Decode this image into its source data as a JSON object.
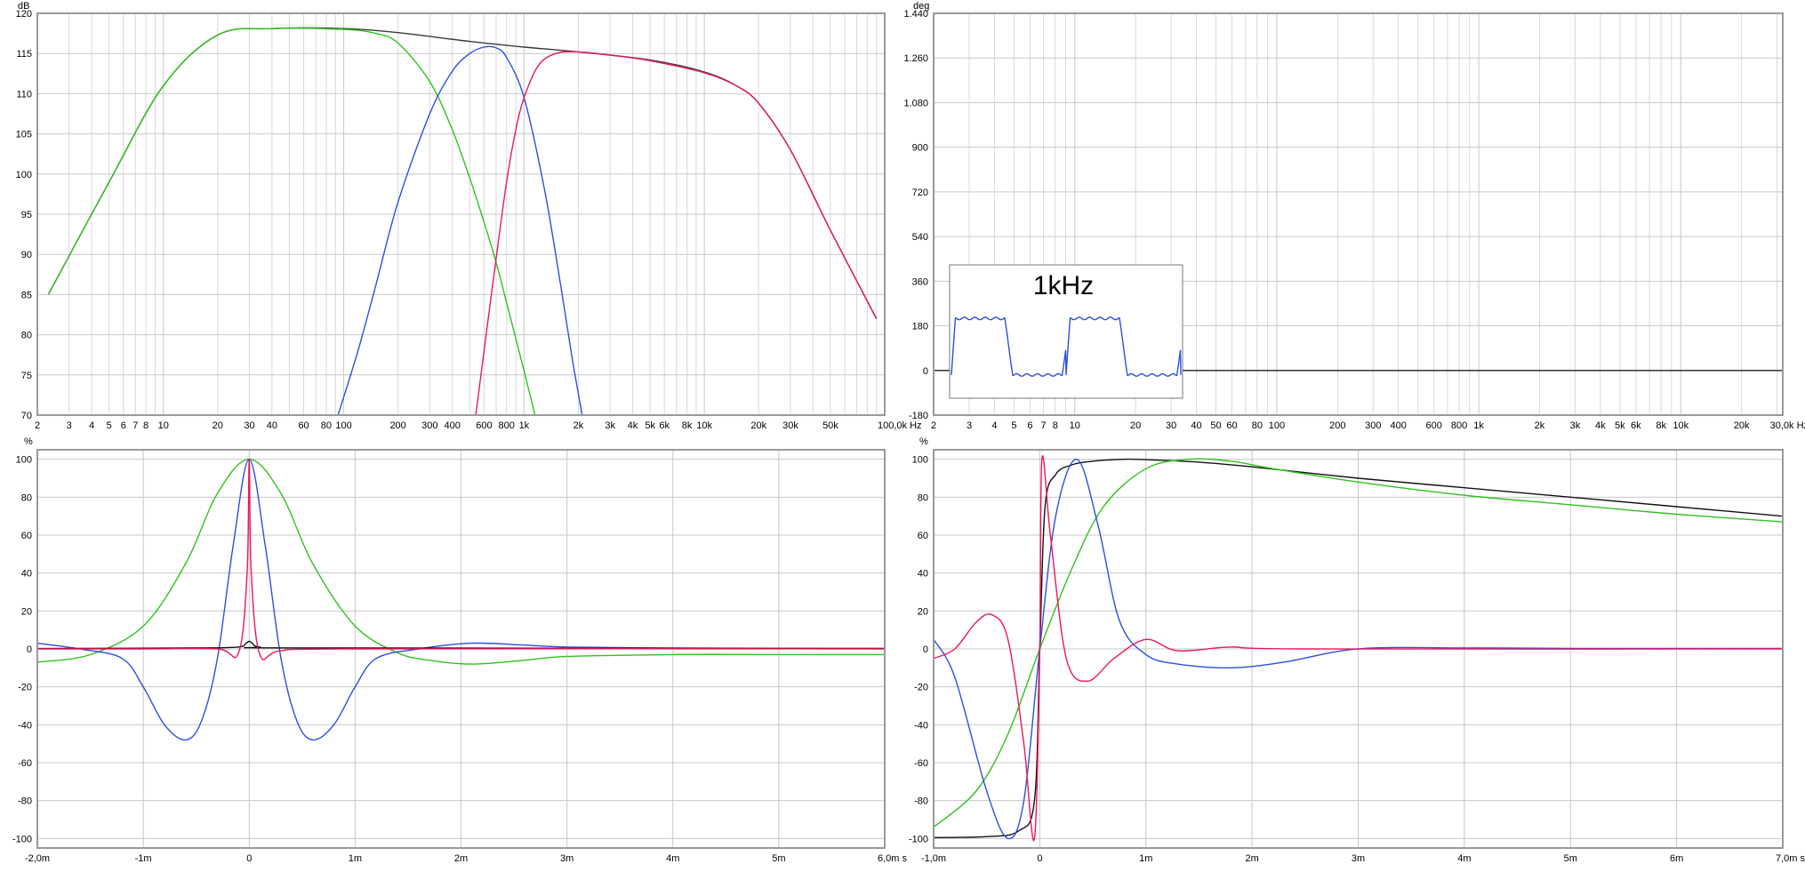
{
  "chart_data": [
    {
      "id": "mag",
      "type": "line",
      "title": "",
      "ylabel": "dB",
      "xlabel": "Hz",
      "xscale": "log",
      "xlim": [
        2,
        100000
      ],
      "ylim": [
        70,
        120
      ],
      "x_ticks": [
        2,
        3,
        4,
        5,
        6,
        7,
        8,
        10,
        20,
        30,
        40,
        60,
        80,
        100,
        200,
        300,
        400,
        600,
        800,
        1000,
        2000,
        3000,
        4000,
        5000,
        6000,
        8000,
        10000,
        20000,
        30000,
        50000,
        100000
      ],
      "x_tick_labels": [
        "2",
        "3",
        "4",
        "5",
        "6",
        "7",
        "8",
        "10",
        "20",
        "30",
        "40",
        "60",
        "80",
        "100",
        "200",
        "300",
        "400",
        "600",
        "800",
        "1k",
        "2k",
        "3k",
        "4k",
        "5k",
        "6k",
        "8k",
        "10k",
        "20k",
        "30k",
        "50k",
        "100,0k Hz"
      ],
      "y_ticks": [
        70,
        75,
        80,
        85,
        90,
        95,
        100,
        105,
        110,
        115,
        120
      ],
      "y_tick_labels": [
        "70",
        "75",
        "80",
        "85",
        "90",
        "95",
        "100",
        "105",
        "110",
        "115",
        "120"
      ],
      "grid": true,
      "series": [
        {
          "color": "#3a3a3a",
          "x": [
            2.3,
            5,
            10,
            20,
            40,
            100,
            200,
            500,
            1000,
            2000,
            5000,
            10000,
            15000,
            20000,
            30000,
            50000,
            90000
          ],
          "y": [
            85,
            99,
            111,
            117.3,
            118.1,
            118.1,
            117.6,
            116.5,
            115.8,
            115.2,
            114.2,
            112.7,
            111,
            108.8,
            103,
            93,
            82
          ]
        },
        {
          "color": "#2ec21b",
          "x": [
            2.3,
            5,
            10,
            20,
            40,
            100,
            150,
            200,
            300,
            400,
            500,
            600,
            700,
            800,
            1000,
            1150
          ],
          "y": [
            85,
            99,
            111,
            117.3,
            118.1,
            118,
            117.5,
            116.3,
            111.5,
            105.5,
            99.5,
            94,
            89,
            84,
            75.5,
            70
          ]
        },
        {
          "color": "#2b4fe0",
          "x": [
            93,
            120,
            150,
            200,
            300,
            400,
            500,
            600,
            700,
            800,
            1000,
            1300,
            1600,
            1850,
            2100
          ],
          "y": [
            70,
            78,
            86,
            96.5,
            107.5,
            112.8,
            115,
            115.8,
            115.7,
            114.5,
            109.5,
            98,
            86,
            77,
            70
          ]
        },
        {
          "color": "#e8185a",
          "x": [
            540,
            600,
            700,
            800,
            900,
            1000,
            1200,
            1500,
            2000,
            3000,
            5000,
            10000,
            15000,
            20000,
            30000,
            50000,
            90000
          ],
          "y": [
            70,
            78,
            89.5,
            99,
            105.5,
            109.5,
            113.5,
            115,
            115.2,
            114.8,
            114.1,
            112.6,
            111,
            108.8,
            103,
            93,
            82
          ]
        }
      ]
    },
    {
      "id": "phase",
      "type": "line",
      "title": "",
      "ylabel": "deg",
      "xlabel": "Hz",
      "xscale": "log",
      "xlim": [
        2,
        32000
      ],
      "ylim": [
        -180,
        1440
      ],
      "x_ticks": [
        2,
        3,
        4,
        5,
        6,
        7,
        8,
        10,
        20,
        30,
        40,
        50,
        60,
        80,
        100,
        200,
        300,
        400,
        600,
        800,
        1000,
        2000,
        3000,
        4000,
        5000,
        6000,
        8000,
        10000,
        20000,
        30000
      ],
      "x_tick_labels": [
        "2",
        "3",
        "4",
        "5",
        "6",
        "7",
        "8",
        "10",
        "20",
        "30",
        "40",
        "50",
        "60",
        "80",
        "100",
        "200",
        "300",
        "400",
        "600",
        "800",
        "1k",
        "2k",
        "3k",
        "4k",
        "5k",
        "6k",
        "8k",
        "10k",
        "20k",
        "30,0k Hz"
      ],
      "y_ticks": [
        -180,
        0,
        180,
        360,
        540,
        720,
        900,
        1080,
        1260,
        1440
      ],
      "y_tick_labels": [
        "-180",
        "0",
        "180",
        "360",
        "540",
        "720",
        "900",
        "1.080",
        "1.260",
        "1.440"
      ],
      "grid": true,
      "series": [
        {
          "color": "#222222",
          "x": [
            2,
            32000
          ],
          "y": [
            0,
            0
          ]
        }
      ],
      "inset": {
        "title": "1kHz",
        "type": "line",
        "series_color": "#2b4fe0",
        "description_values": {
          "high_level": 0.62,
          "low_level": -0.55,
          "cycles": 2
        }
      }
    },
    {
      "id": "impulse",
      "type": "line",
      "title": "",
      "ylabel": "%",
      "xlabel": "s",
      "xlim": [
        -2.0,
        6.0
      ],
      "ylim": [
        -105,
        105
      ],
      "x_ticks": [
        -2,
        -1,
        0,
        1,
        2,
        3,
        4,
        5,
        6
      ],
      "x_tick_labels": [
        "-2,0m",
        "-1m",
        "0",
        "1m",
        "2m",
        "3m",
        "4m",
        "5m",
        "6,0m s"
      ],
      "y_ticks": [
        -100,
        -80,
        -60,
        -40,
        -20,
        0,
        20,
        40,
        60,
        80,
        100
      ],
      "y_tick_labels": [
        "-100",
        "-80",
        "-60",
        "-40",
        "-20",
        "0",
        "20",
        "40",
        "60",
        "80",
        "100"
      ],
      "grid": true,
      "series": [
        {
          "color": "#2ec21b",
          "x": [
            -2,
            -1.5,
            -1,
            -0.6,
            -0.3,
            0,
            0.3,
            0.6,
            1,
            1.4,
            1.7,
            2.1,
            2.6,
            3,
            4,
            5,
            6
          ],
          "y": [
            -7,
            -3,
            12,
            45,
            82,
            100,
            82,
            45,
            12,
            -2,
            -6,
            -8,
            -6,
            -4,
            -3,
            -3,
            -3
          ]
        },
        {
          "color": "#2b4fe0",
          "x": [
            -2,
            -1.6,
            -1.2,
            -1,
            -0.8,
            -0.6,
            -0.45,
            -0.3,
            -0.15,
            0,
            0.15,
            0.3,
            0.45,
            0.6,
            0.8,
            1,
            1.2,
            1.6,
            2.1,
            2.6,
            3,
            4,
            5,
            6
          ],
          "y": [
            3,
            0,
            -5,
            -20,
            -40,
            -48,
            -38,
            -5,
            55,
            100,
            55,
            -5,
            -38,
            -48,
            -40,
            -20,
            -5,
            0,
            3,
            2,
            1,
            0.5,
            0.3,
            0.3
          ]
        },
        {
          "color": "#111111",
          "x": [
            -2,
            -0.5,
            -0.1,
            -0.03,
            0,
            0.03,
            0.1,
            0.5,
            6
          ],
          "y": [
            0.2,
            0.5,
            1,
            3,
            4,
            3,
            1,
            0.5,
            0.2
          ]
        },
        {
          "color": "#e8185a",
          "x": [
            -2,
            -1,
            -0.3,
            -0.1,
            -0.02,
            0,
            0.02,
            0.1,
            0.3,
            1,
            6
          ],
          "y": [
            0,
            0,
            0,
            -2,
            40,
            100,
            40,
            -3,
            -1,
            0,
            0
          ]
        }
      ]
    },
    {
      "id": "step",
      "type": "line",
      "title": "",
      "ylabel": "%",
      "xlabel": "s",
      "xlim": [
        -1.0,
        7.0
      ],
      "ylim": [
        -105,
        105
      ],
      "x_ticks": [
        -1,
        0,
        1,
        2,
        3,
        4,
        5,
        6,
        7
      ],
      "x_tick_labels": [
        "-1,0m",
        "0",
        "1m",
        "2m",
        "3m",
        "4m",
        "5m",
        "6m",
        "7,0m s"
      ],
      "y_ticks": [
        -100,
        -80,
        -60,
        -40,
        -20,
        0,
        20,
        40,
        60,
        80,
        100
      ],
      "y_tick_labels": [
        "-100",
        "-80",
        "-60",
        "-40",
        "-20",
        "0",
        "20",
        "40",
        "60",
        "80",
        "100"
      ],
      "grid": true,
      "series": [
        {
          "color": "#111111",
          "x": [
            -1,
            -0.5,
            -0.2,
            -0.05,
            0,
            0.05,
            0.15,
            0.3,
            0.5,
            0.8,
            1,
            1.5,
            2,
            3,
            4,
            5,
            6,
            7
          ],
          "y": [
            -99.5,
            -99,
            -96,
            -80,
            0,
            75,
            92,
            97,
            99,
            100,
            99.8,
            98.5,
            96,
            90,
            85,
            80,
            75,
            70
          ]
        },
        {
          "color": "#2ec21b",
          "x": [
            -1,
            -0.6,
            -0.3,
            0,
            0.3,
            0.6,
            1,
            1.4,
            1.8,
            2.2,
            3,
            4,
            5,
            6,
            7
          ],
          "y": [
            -94,
            -75,
            -45,
            0,
            42,
            75,
            95,
            100,
            99,
            95,
            88,
            81,
            76,
            71,
            67
          ]
        },
        {
          "color": "#2b4fe0",
          "x": [
            -1,
            -0.8,
            -0.5,
            -0.3,
            -0.15,
            0,
            0.15,
            0.35,
            0.55,
            0.75,
            1,
            1.3,
            1.8,
            2.3,
            3,
            4,
            5,
            7
          ],
          "y": [
            5,
            -15,
            -75,
            -100,
            -80,
            0,
            70,
            100,
            65,
            15,
            -3,
            -8,
            -10,
            -7,
            0,
            0.5,
            0.3,
            0.3
          ]
        },
        {
          "color": "#e8185a",
          "x": [
            -1,
            -0.8,
            -0.6,
            -0.45,
            -0.3,
            -0.15,
            -0.05,
            0,
            0.02,
            0.1,
            0.25,
            0.45,
            0.7,
            1,
            1.3,
            1.8,
            2.5,
            7
          ],
          "y": [
            -5,
            0,
            14,
            18,
            5,
            -50,
            -100,
            0,
            100,
            60,
            -5,
            -17,
            -5,
            5,
            -1,
            1,
            0,
            0
          ]
        }
      ]
    }
  ]
}
